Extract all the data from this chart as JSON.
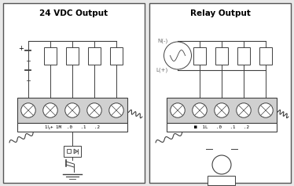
{
  "title_left": "24 VDC Output",
  "title_right": "Relay Output",
  "bg_color": "#e8e8e8",
  "panel_bg": "#ffffff",
  "border_color": "#404040",
  "label_left": "1¼+ 1M  .0   .1   .2",
  "label_right": "■  1L   .0   .1   .2",
  "n_label": "N(-)",
  "l_label": "L(+)"
}
